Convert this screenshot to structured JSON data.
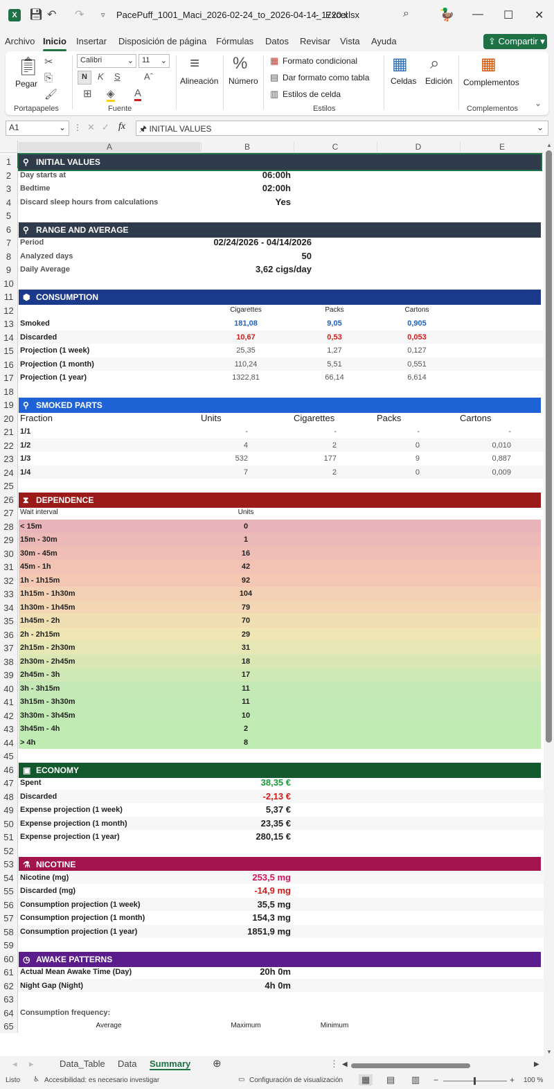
{
  "title": {
    "filename": "PacePuff_1001_Maci_2026-02-24_to_2026-04-14_1720.xlsx",
    "separator": "-",
    "app": "Excel"
  },
  "menu": [
    "Archivo",
    "Inicio",
    "Insertar",
    "Disposición de página",
    "Fórmulas",
    "Datos",
    "Revisar",
    "Vista",
    "Ayuda"
  ],
  "share_label": "Compartir",
  "ribbon": {
    "paste": "Pegar",
    "clipboard": "Portapapeles",
    "font_name": "Calibri",
    "font_size": "11",
    "bold": "N",
    "italic": "K",
    "underline": "S",
    "font_group": "Fuente",
    "align": "Alineación",
    "number": "Número",
    "cond_format": "Formato condicional",
    "table_format": "Dar formato como tabla",
    "cell_styles": "Estilos de celda",
    "styles_group": "Estilos",
    "cells": "Celdas",
    "editing": "Edición",
    "addins": "Complementos",
    "addins_group": "Complementos"
  },
  "namebox": "A1",
  "formula": "INITIAL VALUES",
  "columns": [
    "A",
    "B",
    "C",
    "D",
    "E"
  ],
  "sections": {
    "initial": "INITIAL VALUES",
    "range": "RANGE AND AVERAGE",
    "consumption": "CONSUMPTION",
    "smoked": "SMOKED PARTS",
    "dependence": "DEPENDENCE",
    "economy": "ECONOMY",
    "nicotine": "NICOTINE",
    "awake": "AWAKE PATTERNS"
  },
  "initial": [
    {
      "label": "Day starts at",
      "value": "06:00h"
    },
    {
      "label": "Bedtime",
      "value": "02:00h"
    },
    {
      "label": "Discard sleep hours from calculations",
      "value": "Yes"
    }
  ],
  "range": [
    {
      "label": "Period",
      "value": "02/24/2026 - 04/14/2026"
    },
    {
      "label": "Analyzed days",
      "value": "50"
    },
    {
      "label": "Daily Average",
      "value": "3,62 cigs/day"
    }
  ],
  "consumption": {
    "headers": [
      "Cigarettes",
      "Packs",
      "Cartons"
    ],
    "rows": [
      {
        "label": "Smoked",
        "v": [
          "181,08",
          "9,05",
          "0,905"
        ]
      },
      {
        "label": "Discarded",
        "v": [
          "10,67",
          "0,53",
          "0,053"
        ]
      },
      {
        "label": "Projection (1 week)",
        "v": [
          "25,35",
          "1,27",
          "0,127"
        ]
      },
      {
        "label": "Projection (1 month)",
        "v": [
          "110,24",
          "5,51",
          "0,551"
        ]
      },
      {
        "label": "Projection (1 year)",
        "v": [
          "1322,81",
          "66,14",
          "6,614"
        ]
      }
    ]
  },
  "smoked": {
    "headers": [
      "Fraction",
      "Units",
      "Cigarettes",
      "Packs",
      "Cartons"
    ],
    "rows": [
      [
        "1/1",
        "-",
        "-",
        "-",
        "-"
      ],
      [
        "1/2",
        "4",
        "2",
        "0",
        "0,010"
      ],
      [
        "1/3",
        "532",
        "177",
        "9",
        "0,887"
      ],
      [
        "1/4",
        "7",
        "2",
        "0",
        "0,009"
      ]
    ]
  },
  "dependence": {
    "headers": [
      "Wait interval",
      "Units"
    ],
    "rows": [
      [
        "< 15m",
        "0"
      ],
      [
        "15m - 30m",
        "1"
      ],
      [
        "30m - 45m",
        "16"
      ],
      [
        "45m - 1h",
        "42"
      ],
      [
        "1h - 1h15m",
        "92"
      ],
      [
        "1h15m - 1h30m",
        "104"
      ],
      [
        "1h30m - 1h45m",
        "79"
      ],
      [
        "1h45m - 2h",
        "70"
      ],
      [
        "2h - 2h15m",
        "29"
      ],
      [
        "2h15m - 2h30m",
        "31"
      ],
      [
        "2h30m - 2h45m",
        "18"
      ],
      [
        "2h45m - 3h",
        "17"
      ],
      [
        "3h - 3h15m",
        "11"
      ],
      [
        "3h15m - 3h30m",
        "11"
      ],
      [
        "3h30m - 3h45m",
        "10"
      ],
      [
        "3h45m - 4h",
        "2"
      ],
      [
        "> 4h",
        "8"
      ]
    ]
  },
  "economy": [
    {
      "label": "Spent",
      "value": "38,35 €"
    },
    {
      "label": "Discarded",
      "value": "-2,13 €"
    },
    {
      "label": "Expense projection (1 week)",
      "value": "5,37 €"
    },
    {
      "label": "Expense projection (1 month)",
      "value": "23,35 €"
    },
    {
      "label": "Expense projection (1 year)",
      "value": "280,15 €"
    }
  ],
  "nicotine": [
    {
      "label": "Nicotine (mg)",
      "value": "253,5 mg"
    },
    {
      "label": "Discarded (mg)",
      "value": "-14,9 mg"
    },
    {
      "label": "Consumption projection (1 week)",
      "value": "35,5 mg"
    },
    {
      "label": "Consumption projection (1 month)",
      "value": "154,3 mg"
    },
    {
      "label": "Consumption projection (1 year)",
      "value": "1851,9 mg"
    }
  ],
  "awake": [
    {
      "label": "Actual Mean Awake Time (Day)",
      "value": "20h 0m"
    },
    {
      "label": "Night Gap (Night)",
      "value": "4h 0m"
    }
  ],
  "freq_label": "Consumption frequency:",
  "freq_headers": [
    "Average",
    "Maximum",
    "Minimum"
  ],
  "sheet_tabs": [
    "Data_Table",
    "Data",
    "Summary"
  ],
  "status": {
    "ready": "Listo",
    "accessibility": "Accesibilidad: es necesario investigar",
    "display": "Configuración de visualización",
    "zoom": "100 %"
  },
  "colors": {
    "dark": "#2f3a4a",
    "navy": "#1c3a8c",
    "blue": "#1f62d6",
    "darkred": "#9b1b1b",
    "darkgreen": "#14582e",
    "crimson": "#a3144e",
    "purple": "#5c1d8c",
    "excel_green": "#1e7145"
  }
}
